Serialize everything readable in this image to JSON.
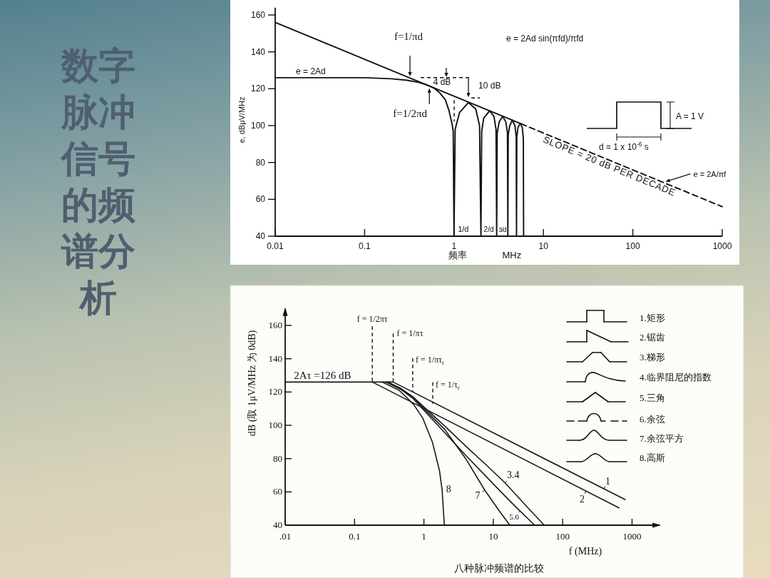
{
  "chart_data": [
    {
      "type": "line",
      "title": "数字脉冲信号的频谱分析",
      "xlabel": "频率 MHz",
      "ylabel": "e, dBμV/MHz",
      "log": "x",
      "xlim": [
        0.01,
        1000
      ],
      "ylim": [
        40,
        164
      ],
      "xticks": [
        0.01,
        0.1,
        1,
        10,
        100,
        1000
      ],
      "yticks": [
        40,
        60,
        80,
        100,
        120,
        140,
        160
      ],
      "series": [
        {
          "color": "#111111",
          "line_style": "solid",
          "x": [
            0.01,
            5.6
          ],
          "values": [
            156,
            101
          ]
        },
        {
          "color": "#111111",
          "line_style": "dashed",
          "x": [
            5.6,
            1000
          ],
          "values": [
            101,
            56
          ]
        },
        {
          "color": "#111111",
          "line_style": "solid",
          "x": [
            0.01,
            0.1,
            0.2,
            0.3,
            0.4,
            0.5,
            0.6,
            0.7,
            0.8,
            0.88,
            0.95,
            0.98,
            1,
            1.03,
            1.15,
            1.45,
            1.75,
            1.93,
            2,
            2.04,
            2.15,
            2.5,
            2.8,
            2.95,
            3,
            3.04,
            3.2,
            3.5,
            3.8,
            3.96,
            4,
            4.04,
            4.2,
            4.5,
            4.8,
            4.96,
            5,
            5.04,
            5.2,
            5.5,
            5.8,
            5.96,
            6
          ],
          "values": [
            126,
            126,
            125.4,
            124.6,
            123.5,
            122,
            120.3,
            117.5,
            114,
            108,
            101,
            97,
            40,
            98,
            107,
            112.5,
            109,
            100,
            40,
            97,
            104,
            108,
            105,
            98,
            40,
            96,
            102,
            105,
            102,
            96,
            40,
            95,
            100,
            103,
            100,
            94,
            40,
            94,
            99,
            101.3,
            99,
            93,
            40
          ]
        }
      ],
      "annotations": [
        {
          "text": "e = 2Ad",
          "x": 0.025,
          "y": 126
        },
        "f=1/πd",
        {
          "text": "f=1/2πd",
          "x": 0.53,
          "y": 121
        },
        "4 dB",
        {
          "text": "10 dB",
          "x": 1.45,
          "y": 115
        },
        "e = 2Ad sin(πfd)/πfd",
        {
          "text": "SLOPE = 20 dB PER DECADE",
          "x": 53,
          "y": 81.5
        },
        {
          "text": "e = 2A/πf",
          "x": 220,
          "y": 69.2
        },
        "A = 1 V",
        "d = 1 x 10$^{-6}$ s",
        {
          "text": "1/d",
          "x": 1,
          "y": 40
        },
        {
          "text": "2/d",
          "x": 2,
          "y": 40
        },
        {
          "text": "3/d",
          "x": 3,
          "y": 40
        }
      ]
    },
    {
      "type": "line",
      "xlabel": "f (MHz)",
      "ylabel": "dB (取 1μV/MHz 为 0dB)",
      "log": "x",
      "xlim": [
        0.01,
        2500
      ],
      "ylim": [
        40,
        170
      ],
      "xticks": [
        {
          "value": 0.01,
          "label": ".01"
        },
        0.1,
        1,
        10,
        100,
        1000
      ],
      "yticks": [
        40,
        60,
        80,
        100,
        120,
        140,
        160
      ],
      "legend": "bottom right",
      "series": [
        {
          "name": "1",
          "color": "#1a1a1a",
          "x": [
            0.01,
            0.36,
            794
          ],
          "values": [
            126,
            126,
            55.4
          ]
        },
        {
          "name": "2",
          "color": "#1a1a1a",
          "x": [
            0.18,
            650
          ],
          "values": [
            126,
            50.4
          ]
        },
        {
          "name": "3.4",
          "color": "#1a1a1a",
          "x": [
            0.3,
            0.45,
            0.7,
            1,
            2,
            4,
            8,
            14.8,
            30,
            54.2
          ],
          "values": [
            126,
            122.5,
            117,
            111,
            99.5,
            87.5,
            76,
            65.4,
            51.5,
            40
          ]
        },
        {
          "name": "5.6",
          "color": "#1a1a1a",
          "x": [
            0.3,
            0.45,
            0.7,
            1,
            2,
            4,
            8,
            14,
            21,
            39.5
          ],
          "values": [
            126,
            122,
            116,
            109,
            95.5,
            82,
            69,
            58.5,
            51.1,
            40
          ]
        },
        {
          "name": "7",
          "color": "#1a1a1a",
          "x": [
            0.28,
            0.45,
            0.7,
            1,
            2,
            4,
            7.55,
            12,
            17.3
          ],
          "values": [
            126,
            122,
            117,
            110,
            97.5,
            80,
            61,
            49,
            40
          ]
        },
        {
          "name": "8",
          "color": "#1a1a1a",
          "x": [
            0.25,
            0.44,
            0.71,
            0.97,
            1.33,
            1.68,
            1.83,
            1.97
          ],
          "values": [
            126,
            121,
            112.6,
            104,
            89.7,
            72.6,
            61.1,
            40
          ]
        }
      ],
      "annotations": [
        {
          "text": "2Aτ =126 dB",
          "x": 0.03,
          "y": 126
        },
        "f = 1/2πτ",
        "f = 1/πτ",
        "f = 1/πτ$_{r}$",
        {
          "text": "f = 1/τ$_{r}$",
          "x": 1.34,
          "y": 113
        },
        "1.矩形",
        "2.锯齿",
        "3.梯形",
        "4.临界阻尼的指数",
        "5.三角",
        "6.余弦",
        "7.余弦平方",
        "8.高斯",
        "八种脉冲频谱的比较"
      ]
    }
  ]
}
